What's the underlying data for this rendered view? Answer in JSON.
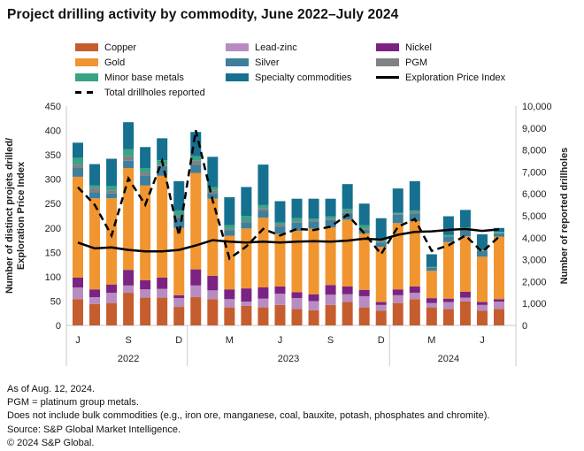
{
  "title": "Project drilling activity by commodity, June 2022–July 2024",
  "legend": {
    "items": [
      {
        "label": "Copper",
        "color": "#C65D2E",
        "marker": "swatch"
      },
      {
        "label": "Lead-zinc",
        "color": "#B88CC1",
        "marker": "swatch"
      },
      {
        "label": "Nickel",
        "color": "#7B2383",
        "marker": "swatch"
      },
      {
        "label": "Gold",
        "color": "#F0952F",
        "marker": "swatch"
      },
      {
        "label": "Silver",
        "color": "#3E7F9B",
        "marker": "swatch"
      },
      {
        "label": "PGM",
        "color": "#808184",
        "marker": "swatch"
      },
      {
        "label": "Minor base metals",
        "color": "#38A385",
        "marker": "swatch"
      },
      {
        "label": "Specialty commodities",
        "color": "#16708F",
        "marker": "swatch"
      },
      {
        "label": "Exploration Price Index",
        "color": "#000000",
        "marker": "solid-line"
      },
      {
        "label": "Total drillholes reported",
        "color": "#000000",
        "marker": "dashed-line"
      }
    ]
  },
  "chart_data": {
    "type": "bar",
    "subtype": "stacked-bars-with-lines",
    "months": [
      "Jun 2022",
      "Jul 2022",
      "Aug 2022",
      "Sep 2022",
      "Oct 2022",
      "Nov 2022",
      "Dec 2022",
      "Jan 2023",
      "Feb 2023",
      "Mar 2023",
      "Apr 2023",
      "May 2023",
      "Jun 2023",
      "Jul 2023",
      "Aug 2023",
      "Sep 2023",
      "Oct 2023",
      "Nov 2023",
      "Dec 2023",
      "Jan 2024",
      "Feb 2024",
      "Mar 2024",
      "Apr 2024",
      "May 2024",
      "Jun 2024",
      "Jul 2024"
    ],
    "x_tick_labels": [
      "J",
      "S",
      "D",
      "M",
      "J",
      "S",
      "D",
      "M",
      "J"
    ],
    "x_tick_month_indexes": [
      0,
      3,
      6,
      9,
      12,
      15,
      18,
      21,
      24
    ],
    "year_groups": [
      {
        "label": "2022",
        "start": 0,
        "end": 6
      },
      {
        "label": "2023",
        "start": 7,
        "end": 18
      },
      {
        "label": "2024",
        "start": 19,
        "end": 25
      }
    ],
    "left_axis": {
      "label": "Number of distinct projets drilled/Exploration Price Index",
      "label_line1": "Number of distinct projets drilled/",
      "label_line2": "Exploration Price Index",
      "min": 0,
      "max": 450,
      "ticks": [
        "0",
        "50",
        "100",
        "150",
        "200",
        "250",
        "300",
        "350",
        "400",
        "450"
      ]
    },
    "right_axis": {
      "label": "Number of reported drillholes",
      "min": 0,
      "max": 10000,
      "ticks": [
        "0",
        "1,000",
        "2,000",
        "3,000",
        "4,000",
        "5,000",
        "6,000",
        "7,000",
        "8,000",
        "9,000",
        "10,000"
      ]
    },
    "series": [
      {
        "name": "Copper",
        "color": "#C65D2E",
        "values": [
          54,
          44,
          46,
          67,
          57,
          57,
          38,
          58,
          54,
          37,
          40,
          37,
          42,
          34,
          31,
          42,
          48,
          37,
          30,
          46,
          54,
          37,
          34,
          49,
          30,
          34
        ]
      },
      {
        "name": "Lead-zinc",
        "color": "#B88CC1",
        "values": [
          24,
          14,
          21,
          15,
          17,
          18,
          18,
          24,
          18,
          17,
          9,
          18,
          23,
          22,
          19,
          21,
          16,
          23,
          12,
          16,
          13,
          9,
          14,
          8,
          12,
          15
        ]
      },
      {
        "name": "Nickel",
        "color": "#7B2383",
        "values": [
          20,
          16,
          17,
          32,
          19,
          23,
          6,
          33,
          30,
          20,
          27,
          23,
          15,
          12,
          14,
          20,
          16,
          13,
          6,
          12,
          13,
          10,
          7,
          12,
          6,
          5
        ]
      },
      {
        "name": "Gold",
        "color": "#F0952F",
        "values": [
          207,
          187,
          177,
          209,
          194,
          209,
          138,
          198,
          158,
          110,
          123,
          143,
          108,
          126,
          135,
          118,
          137,
          116,
          113,
          136,
          134,
          56,
          116,
          114,
          93,
          128
        ]
      },
      {
        "name": "Silver",
        "color": "#3E7F9B",
        "values": [
          18,
          12,
          10,
          15,
          21,
          20,
          21,
          17,
          11,
          11,
          13,
          14,
          15,
          17,
          14,
          15,
          14,
          6,
          9,
          17,
          16,
          6,
          12,
          15,
          12,
          7
        ]
      },
      {
        "name": "PGM",
        "color": "#808184",
        "values": [
          7,
          9,
          6,
          9,
          6,
          3,
          5,
          8,
          6,
          3,
          3,
          5,
          4,
          3,
          3,
          3,
          3,
          4,
          3,
          2,
          3,
          1,
          1,
          1,
          1,
          1
        ]
      },
      {
        "name": "Minor base metals",
        "color": "#38A385",
        "values": [
          14,
          5,
          9,
          15,
          9,
          9,
          10,
          9,
          7,
          8,
          10,
          7,
          4,
          6,
          3,
          5,
          5,
          7,
          3,
          2,
          3,
          1,
          2,
          2,
          2,
          2
        ]
      },
      {
        "name": "Specialty commodities",
        "color": "#16708F",
        "values": [
          31,
          44,
          56,
          55,
          43,
          45,
          60,
          50,
          62,
          57,
          59,
          83,
          44,
          40,
          41,
          36,
          51,
          44,
          44,
          50,
          60,
          26,
          38,
          36,
          31,
          8
        ]
      }
    ],
    "lines": [
      {
        "name": "Exploration Price Index",
        "axis": "left",
        "style": "solid",
        "color": "#000000",
        "values": [
          170,
          158,
          160,
          155,
          152,
          152,
          155,
          164,
          175,
          172,
          170,
          172,
          170,
          172,
          173,
          172,
          174,
          178,
          176,
          186,
          192,
          193,
          196,
          198,
          194,
          197
        ]
      },
      {
        "name": "Total drillholes reported",
        "axis": "right",
        "style": "dashed",
        "color": "#000000",
        "values": [
          6300,
          5500,
          4100,
          6700,
          5500,
          7500,
          4100,
          8900,
          5700,
          3050,
          3600,
          4400,
          4100,
          4400,
          4350,
          4500,
          5050,
          4200,
          3250,
          4500,
          4850,
          3400,
          3650,
          4100,
          3350,
          4050
        ]
      }
    ]
  },
  "footnotes": [
    "As of Aug. 12, 2024.",
    "PGM = platinum group metals.",
    "Does not include bulk commodities (e.g., iron ore, manganese, coal, bauxite, potash, phosphates and chromite).",
    "Source: S&P Global Market Intelligence.",
    "© 2024 S&P Global."
  ]
}
